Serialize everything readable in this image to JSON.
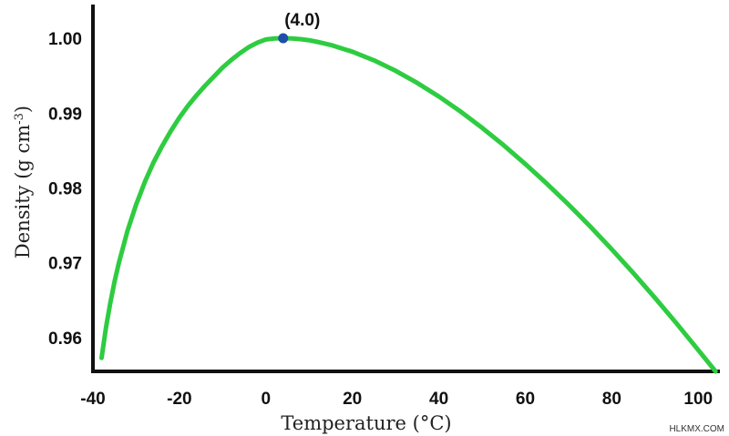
{
  "chart_data": {
    "type": "line",
    "xlabel": "Temperature (°C)",
    "ylabel_main": "Density (g cm",
    "ylabel_sup": "-3",
    "ylabel_close": ")",
    "xlim": [
      -40,
      105
    ],
    "ylim": [
      0.9555,
      1.0045
    ],
    "x_ticks": [
      -40,
      -20,
      0,
      20,
      40,
      60,
      80,
      100
    ],
    "x_tick_labels": [
      "-40",
      "-20",
      "0",
      "20",
      "40",
      "60",
      "80",
      "100"
    ],
    "y_ticks": [
      0.96,
      0.97,
      0.98,
      0.99,
      1.0
    ],
    "y_tick_labels": [
      "0.96",
      "0.97",
      "0.98",
      "0.99",
      "1.00"
    ],
    "grid": false,
    "series": [
      {
        "color": "#2ecc40",
        "x": [
          -38,
          -37,
          -36,
          -35,
          -34,
          -32,
          -30,
          -28,
          -26,
          -24,
          -22,
          -20,
          -18,
          -16,
          -14,
          -12,
          -10,
          -8,
          -6,
          -4,
          -2,
          0,
          2,
          4,
          6,
          8,
          10,
          12,
          15,
          20,
          25,
          30,
          35,
          40,
          45,
          50,
          55,
          60,
          65,
          70,
          75,
          80,
          85,
          90,
          95,
          100,
          104
        ],
        "y": [
          0.9573,
          0.9613,
          0.9646,
          0.9675,
          0.97,
          0.9743,
          0.9778,
          0.9808,
          0.9834,
          0.9856,
          0.9876,
          0.9894,
          0.991,
          0.9924,
          0.9937,
          0.9949,
          0.9961,
          0.9971,
          0.998,
          0.9988,
          0.9994,
          0.99984,
          0.99997,
          1.0,
          0.99997,
          0.99988,
          0.99973,
          0.9995,
          0.9991,
          0.9982,
          0.99705,
          0.99565,
          0.99403,
          0.99222,
          0.99022,
          0.98804,
          0.9857,
          0.9832,
          0.98056,
          0.97778,
          0.97486,
          0.9718,
          0.96862,
          0.96531,
          0.96189,
          0.95835,
          0.9555
        ]
      }
    ],
    "highlight_point": {
      "x": 4.0,
      "y": 1.0,
      "label": "(4.0)",
      "color": "#1f4fa8"
    }
  },
  "watermark": "HLKMX.COM"
}
